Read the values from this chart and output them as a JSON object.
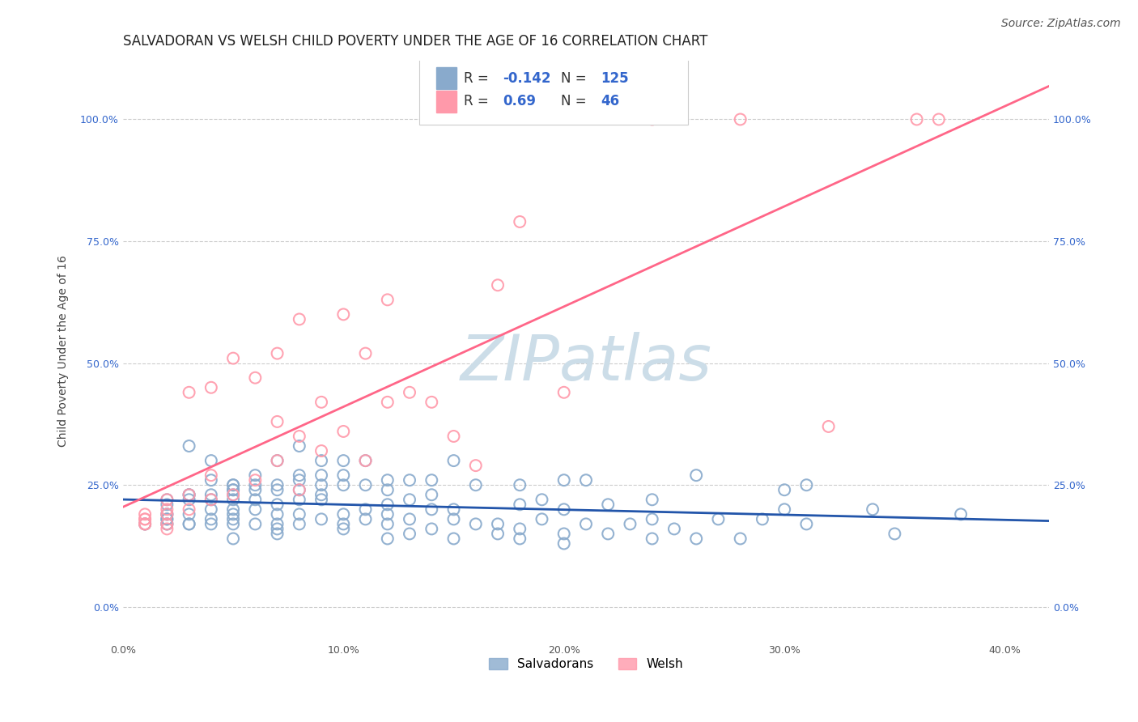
{
  "title": "SALVADORAN VS WELSH CHILD POVERTY UNDER THE AGE OF 16 CORRELATION CHART",
  "source": "Source: ZipAtlas.com",
  "ylabel": "Child Poverty Under the Age of 16",
  "xlabel_vals": [
    0.0,
    0.1,
    0.2,
    0.3,
    0.4
  ],
  "ylabel_vals": [
    0.0,
    0.25,
    0.5,
    0.75,
    1.0
  ],
  "xlim": [
    0.0,
    0.42
  ],
  "ylim": [
    -0.07,
    1.12
  ],
  "salvadoran_R": -0.142,
  "salvadoran_N": 125,
  "welsh_R": 0.69,
  "welsh_N": 46,
  "legend_labels": [
    "Salvadorans",
    "Welsh"
  ],
  "blue_color": "#89AACC",
  "pink_color": "#FF99AA",
  "blue_line_color": "#2255AA",
  "pink_line_color": "#FF6688",
  "watermark": "ZIPatlas",
  "watermark_color": "#CCDDE8",
  "title_fontsize": 12,
  "source_fontsize": 10,
  "axis_label_fontsize": 10,
  "tick_label_fontsize": 9,
  "legend_fontsize": 12,
  "salvadoran_x": [
    0.01,
    0.01,
    0.02,
    0.02,
    0.02,
    0.02,
    0.02,
    0.02,
    0.02,
    0.02,
    0.03,
    0.03,
    0.03,
    0.03,
    0.03,
    0.03,
    0.03,
    0.04,
    0.04,
    0.04,
    0.04,
    0.04,
    0.04,
    0.04,
    0.05,
    0.05,
    0.05,
    0.05,
    0.05,
    0.05,
    0.05,
    0.05,
    0.05,
    0.05,
    0.05,
    0.06,
    0.06,
    0.06,
    0.06,
    0.06,
    0.06,
    0.07,
    0.07,
    0.07,
    0.07,
    0.07,
    0.07,
    0.07,
    0.07,
    0.08,
    0.08,
    0.08,
    0.08,
    0.08,
    0.08,
    0.08,
    0.09,
    0.09,
    0.09,
    0.09,
    0.09,
    0.09,
    0.1,
    0.1,
    0.1,
    0.1,
    0.1,
    0.1,
    0.11,
    0.11,
    0.11,
    0.11,
    0.12,
    0.12,
    0.12,
    0.12,
    0.12,
    0.12,
    0.13,
    0.13,
    0.13,
    0.13,
    0.14,
    0.14,
    0.14,
    0.14,
    0.15,
    0.15,
    0.15,
    0.15,
    0.16,
    0.16,
    0.17,
    0.17,
    0.18,
    0.18,
    0.18,
    0.18,
    0.19,
    0.19,
    0.2,
    0.2,
    0.2,
    0.2,
    0.21,
    0.21,
    0.22,
    0.22,
    0.23,
    0.24,
    0.24,
    0.24,
    0.25,
    0.26,
    0.26,
    0.27,
    0.28,
    0.29,
    0.3,
    0.3,
    0.31,
    0.31,
    0.34,
    0.35,
    0.38
  ],
  "salvadoran_y": [
    0.17,
    0.17,
    0.17,
    0.17,
    0.18,
    0.18,
    0.19,
    0.19,
    0.21,
    0.22,
    0.17,
    0.17,
    0.19,
    0.22,
    0.23,
    0.23,
    0.33,
    0.17,
    0.18,
    0.2,
    0.22,
    0.23,
    0.26,
    0.3,
    0.14,
    0.17,
    0.18,
    0.19,
    0.2,
    0.22,
    0.23,
    0.24,
    0.24,
    0.25,
    0.25,
    0.17,
    0.2,
    0.22,
    0.24,
    0.25,
    0.27,
    0.15,
    0.16,
    0.17,
    0.19,
    0.21,
    0.24,
    0.25,
    0.3,
    0.17,
    0.19,
    0.22,
    0.24,
    0.26,
    0.27,
    0.33,
    0.18,
    0.22,
    0.23,
    0.25,
    0.27,
    0.3,
    0.16,
    0.17,
    0.19,
    0.25,
    0.27,
    0.3,
    0.18,
    0.2,
    0.25,
    0.3,
    0.14,
    0.17,
    0.19,
    0.21,
    0.24,
    0.26,
    0.15,
    0.18,
    0.22,
    0.26,
    0.16,
    0.2,
    0.23,
    0.26,
    0.14,
    0.18,
    0.2,
    0.3,
    0.17,
    0.25,
    0.15,
    0.17,
    0.14,
    0.16,
    0.21,
    0.25,
    0.18,
    0.22,
    0.13,
    0.15,
    0.2,
    0.26,
    0.17,
    0.26,
    0.15,
    0.21,
    0.17,
    0.14,
    0.18,
    0.22,
    0.16,
    0.14,
    0.27,
    0.18,
    0.14,
    0.18,
    0.2,
    0.24,
    0.17,
    0.25,
    0.2,
    0.15,
    0.19
  ],
  "welsh_x": [
    0.01,
    0.01,
    0.01,
    0.01,
    0.01,
    0.02,
    0.02,
    0.02,
    0.02,
    0.02,
    0.03,
    0.03,
    0.03,
    0.04,
    0.04,
    0.04,
    0.05,
    0.05,
    0.06,
    0.06,
    0.07,
    0.07,
    0.07,
    0.08,
    0.08,
    0.08,
    0.09,
    0.09,
    0.1,
    0.1,
    0.11,
    0.11,
    0.12,
    0.12,
    0.13,
    0.14,
    0.15,
    0.16,
    0.17,
    0.18,
    0.2,
    0.24,
    0.28,
    0.32,
    0.36,
    0.37
  ],
  "welsh_y": [
    0.17,
    0.17,
    0.18,
    0.18,
    0.19,
    0.16,
    0.17,
    0.19,
    0.2,
    0.22,
    0.2,
    0.23,
    0.44,
    0.22,
    0.27,
    0.45,
    0.23,
    0.51,
    0.26,
    0.47,
    0.3,
    0.38,
    0.52,
    0.24,
    0.35,
    0.59,
    0.32,
    0.42,
    0.36,
    0.6,
    0.3,
    0.52,
    0.42,
    0.63,
    0.44,
    0.42,
    0.35,
    0.29,
    0.66,
    0.79,
    0.44,
    1.0,
    1.0,
    0.37,
    1.0,
    1.0
  ]
}
